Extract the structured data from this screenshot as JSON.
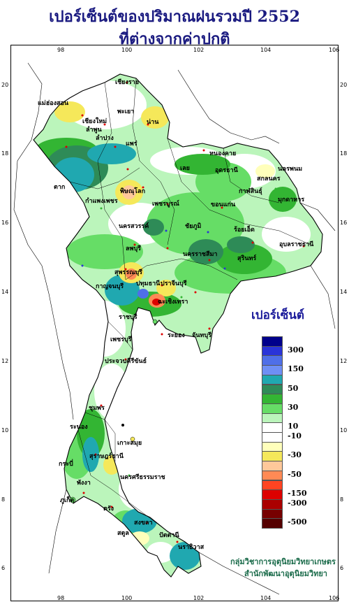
{
  "title": {
    "line1": "เปอร์เซ็นต์ของปริมาณฝนรวมปี  2552",
    "line2": "ที่ต่างจากค่าปกติ"
  },
  "axes": {
    "lon_ticks": [
      "98",
      "100",
      "102",
      "104",
      "106"
    ],
    "lat_ticks": [
      "20",
      "18",
      "16",
      "14",
      "12",
      "10",
      "8",
      "6"
    ]
  },
  "legend": {
    "title": "เปอร์เซ็นต์",
    "entries": [
      {
        "color": "#00008b",
        "label": ""
      },
      {
        "color": "#2a34d8",
        "label": "300"
      },
      {
        "color": "#4f6fe8",
        "label": ""
      },
      {
        "color": "#6f8ff5",
        "label": "150"
      },
      {
        "color": "#20a8b0",
        "label": ""
      },
      {
        "color": "#2e8b57",
        "label": "50"
      },
      {
        "color": "#33b533",
        "label": ""
      },
      {
        "color": "#66dd66",
        "label": "30"
      },
      {
        "color": "#bbf5bb",
        "label": ""
      },
      {
        "color": "#ffffff",
        "label": "10"
      },
      {
        "color": "#ffffff",
        "label": "-10"
      },
      {
        "color": "#ffffbb",
        "label": ""
      },
      {
        "color": "#f5e85a",
        "label": "-30"
      },
      {
        "color": "#ffc89a",
        "label": ""
      },
      {
        "color": "#ff8a55",
        "label": "-50"
      },
      {
        "color": "#ff4422",
        "label": ""
      },
      {
        "color": "#dd0000",
        "label": "-150"
      },
      {
        "color": "#aa0000",
        "label": "-300"
      },
      {
        "color": "#770000",
        "label": ""
      },
      {
        "color": "#550000",
        "label": "-500"
      }
    ]
  },
  "credits": {
    "line1": "กลุ่มวิชาการอุตุนิยมวิทยาเกษตร",
    "line2": "สำนักพัฒนาอุตุนิยมวิทยา"
  },
  "places": [
    "เชียงราย",
    "แม่ฮ่องสอน",
    "พะเยา",
    "เชียงใหม่",
    "ลำพูน",
    "น่าน",
    "ลำปาง",
    "แพร่",
    "หนองคาย",
    "นครพนม",
    "อุดรธานี",
    "เลย",
    "สกลนคร",
    "มุกดาหาร",
    "ตาก",
    "พิษณุโลก",
    "กาฬสินธุ์",
    "ขอนแก่น",
    "กำแพงเพชร",
    "เพชรบูรณ์",
    "นครสวรรค์",
    "ชัยภูมิ",
    "ร้อยเอ็ด",
    "อุบลราชธานี",
    "ลพบุรี",
    "นครราชสีมา",
    "สุรินทร์",
    "สุพรรณบุรี",
    "ปราจีนบุรี",
    "กาญจนบุรี",
    "ปทุมธานี",
    "ฉะเชิงเทรา",
    "ราชบุรี",
    "จันทบุรี",
    "ระยอง",
    "เพชรบุรี",
    "ประจวบคีรีขันธ์",
    "ชุมพร",
    "ระนอง",
    "สุราษฎร์ธานี",
    "นครศรีธรรมราช",
    "พังงา",
    "ภูเก็ต",
    "ตรัง",
    "สงขลา",
    "สตูล",
    "ปัตตานี",
    "นราธิวาส",
    "กระบี่",
    "เกาะสมุย"
  ]
}
